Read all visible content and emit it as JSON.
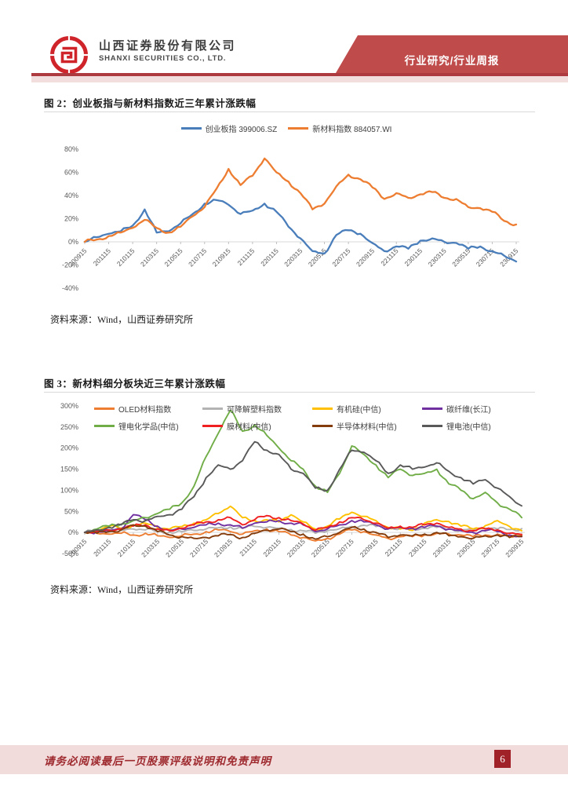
{
  "header": {
    "company_cn": "山西证券股份有限公司",
    "company_en": "SHANXI SECURITIES CO., LTD.",
    "report_type": "行业研究/行业周报",
    "banner_red": "#bf4b4b",
    "rule_red": "#ac3a3f",
    "band_pink": "#f2dedd",
    "logo_red": "#d0242b"
  },
  "figures": [
    {
      "title": "图 2：创业板指与新材料指数近三年累计涨跌幅",
      "source": "资料来源：Wind，山西证券研究所",
      "chart_data": {
        "type": "line",
        "title": "创业板指与新材料指数近三年累计涨跌幅",
        "xlabel": "",
        "ylabel": "",
        "unit": "%",
        "grid": false,
        "legend_position": "top-center",
        "ylim": [
          -40,
          80
        ],
        "yticks": [
          80,
          60,
          40,
          20,
          0,
          -20,
          -40
        ],
        "x_tick_labels": [
          "200915",
          "201115",
          "210115",
          "210315",
          "210515",
          "210715",
          "210915",
          "211115",
          "220115",
          "220315",
          "220515",
          "220715",
          "220915",
          "221115",
          "230115",
          "230315",
          "230515",
          "230715",
          "230915"
        ],
        "x": [
          "200915",
          "201015",
          "201115",
          "201215",
          "210115",
          "210215",
          "210315",
          "210415",
          "210515",
          "210615",
          "210715",
          "210815",
          "210915",
          "211015",
          "211115",
          "211215",
          "220115",
          "220215",
          "220315",
          "220415",
          "220515",
          "220615",
          "220715",
          "220815",
          "220915",
          "221015",
          "221115",
          "221215",
          "230115",
          "230215",
          "230315",
          "230415",
          "230515",
          "230615",
          "230715",
          "230815",
          "230915"
        ],
        "series": [
          {
            "name": "创业板指 399006.SZ",
            "color": "#4a7ebb",
            "values": [
              0,
              4,
              7,
              9,
              14,
              28,
              8,
              9,
              16,
              24,
              33,
              36,
              32,
              24,
              27,
              33,
              26,
              13,
              3,
              -8,
              -10,
              6,
              10,
              7,
              -1,
              -8,
              -4,
              -6,
              1,
              3,
              0,
              -1,
              -6,
              -4,
              -8,
              -12,
              -17
            ]
          },
          {
            "name": "新材料指数 884057.WI",
            "color": "#ed7d31",
            "values": [
              0,
              2,
              5,
              8,
              12,
              19,
              12,
              8,
              13,
              22,
              30,
              46,
              63,
              49,
              57,
              72,
              60,
              52,
              42,
              28,
              33,
              48,
              58,
              54,
              47,
              37,
              42,
              38,
              41,
              43,
              38,
              37,
              30,
              29,
              26,
              18,
              15
            ]
          }
        ]
      }
    },
    {
      "title": "图 3：新材料细分板块近三年累计涨跌幅",
      "source": "资料来源：Wind，山西证券研究所",
      "chart_data": {
        "type": "line",
        "title": "新材料细分板块近三年累计涨跌幅",
        "xlabel": "",
        "ylabel": "",
        "unit": "%",
        "grid": false,
        "legend_position": "top (2 rows x 4 cols, overlapping plot)",
        "ylim": [
          -50,
          300
        ],
        "yticks": [
          300,
          250,
          200,
          150,
          100,
          50,
          0,
          -50
        ],
        "x_tick_labels": [
          "200915",
          "201115",
          "210115",
          "210315",
          "210515",
          "210715",
          "210915",
          "211115",
          "220115",
          "220315",
          "220515",
          "220715",
          "220915",
          "221115",
          "230115",
          "230315",
          "230515",
          "230715",
          "230915"
        ],
        "x": [
          "200915",
          "201015",
          "201115",
          "201215",
          "210115",
          "210215",
          "210315",
          "210415",
          "210515",
          "210615",
          "210715",
          "210815",
          "210915",
          "211015",
          "211115",
          "211215",
          "220115",
          "220215",
          "220315",
          "220415",
          "220515",
          "220615",
          "220715",
          "220815",
          "220915",
          "221015",
          "221115",
          "221215",
          "230115",
          "230215",
          "230315",
          "230415",
          "230515",
          "230615",
          "230715",
          "230815",
          "230915"
        ],
        "series": [
          {
            "name": "OLED材料指数",
            "color": "#ed7d31",
            "values": [
              0,
              -2,
              -4,
              -2,
              -6,
              -2,
              -8,
              -12,
              -8,
              -4,
              2,
              6,
              2,
              -4,
              4,
              8,
              2,
              -6,
              -12,
              -20,
              -14,
              -4,
              6,
              2,
              -6,
              -14,
              -10,
              -10,
              -6,
              -2,
              -4,
              -6,
              -10,
              -6,
              -4,
              -10,
              -7
            ]
          },
          {
            "name": "可降解塑料指数",
            "color": "#b3b3b3",
            "values": [
              0,
              4,
              7,
              5,
              8,
              6,
              3,
              1,
              2,
              5,
              8,
              11,
              13,
              10,
              14,
              12,
              10,
              7,
              4,
              -2,
              4,
              9,
              14,
              17,
              14,
              11,
              9,
              8,
              10,
              12,
              8,
              6,
              8,
              10,
              8,
              7,
              9
            ]
          },
          {
            "name": "有机硅(中信)",
            "color": "#ffc000",
            "values": [
              0,
              6,
              14,
              10,
              18,
              22,
              12,
              8,
              14,
              22,
              30,
              45,
              62,
              35,
              28,
              30,
              25,
              42,
              25,
              8,
              15,
              32,
              48,
              38,
              28,
              12,
              8,
              5,
              22,
              30,
              26,
              15,
              8,
              16,
              28,
              14,
              4
            ]
          },
          {
            "name": "碳纤维(长江)",
            "color": "#7030a0",
            "values": [
              0,
              2,
              5,
              8,
              42,
              30,
              15,
              5,
              8,
              12,
              18,
              22,
              18,
              10,
              22,
              25,
              28,
              22,
              18,
              2,
              8,
              18,
              28,
              25,
              18,
              8,
              12,
              10,
              12,
              15,
              8,
              4,
              0,
              4,
              2,
              -6,
              -10
            ]
          },
          {
            "name": "锂电化学品(中信)",
            "color": "#70ad47",
            "values": [
              0,
              8,
              15,
              20,
              28,
              35,
              45,
              55,
              70,
              110,
              180,
              235,
              290,
              240,
              255,
              230,
              200,
              170,
              150,
              110,
              95,
              140,
              205,
              185,
              160,
              130,
              150,
              135,
              140,
              150,
              115,
              100,
              80,
              95,
              70,
              55,
              35
            ]
          },
          {
            "name": "膜材料(中信)",
            "color": "#f02020",
            "values": [
              0,
              3,
              6,
              8,
              15,
              18,
              8,
              4,
              10,
              18,
              25,
              30,
              35,
              18,
              30,
              40,
              35,
              28,
              20,
              5,
              12,
              25,
              35,
              30,
              22,
              10,
              15,
              12,
              18,
              22,
              12,
              8,
              4,
              8,
              6,
              -2,
              -5
            ]
          },
          {
            "name": "半导体材料(中信)",
            "color": "#843c0c",
            "values": [
              0,
              -2,
              2,
              6,
              18,
              15,
              2,
              -6,
              -10,
              -14,
              -12,
              -8,
              -5,
              -12,
              -2,
              5,
              8,
              2,
              -4,
              -16,
              -10,
              0,
              12,
              8,
              0,
              -12,
              -6,
              -8,
              -4,
              0,
              -8,
              -10,
              -14,
              -8,
              -6,
              -12,
              -9
            ]
          },
          {
            "name": "锂电池(中信)",
            "color": "#595959",
            "values": [
              0,
              6,
              12,
              18,
              30,
              28,
              38,
              42,
              55,
              85,
              130,
              160,
              150,
              170,
              215,
              195,
              185,
              150,
              140,
              105,
              100,
              150,
              195,
              190,
              170,
              140,
              160,
              150,
              155,
              165,
              145,
              130,
              115,
              125,
              105,
              85,
              63
            ]
          }
        ]
      }
    }
  ],
  "footer": {
    "disclaimer": "请务必阅读最后一页股票评级说明和免责声明",
    "page_number": "6",
    "band_pink": "#f2dcdb",
    "text_red": "#9e2a2f",
    "badge_red": "#a02228"
  }
}
